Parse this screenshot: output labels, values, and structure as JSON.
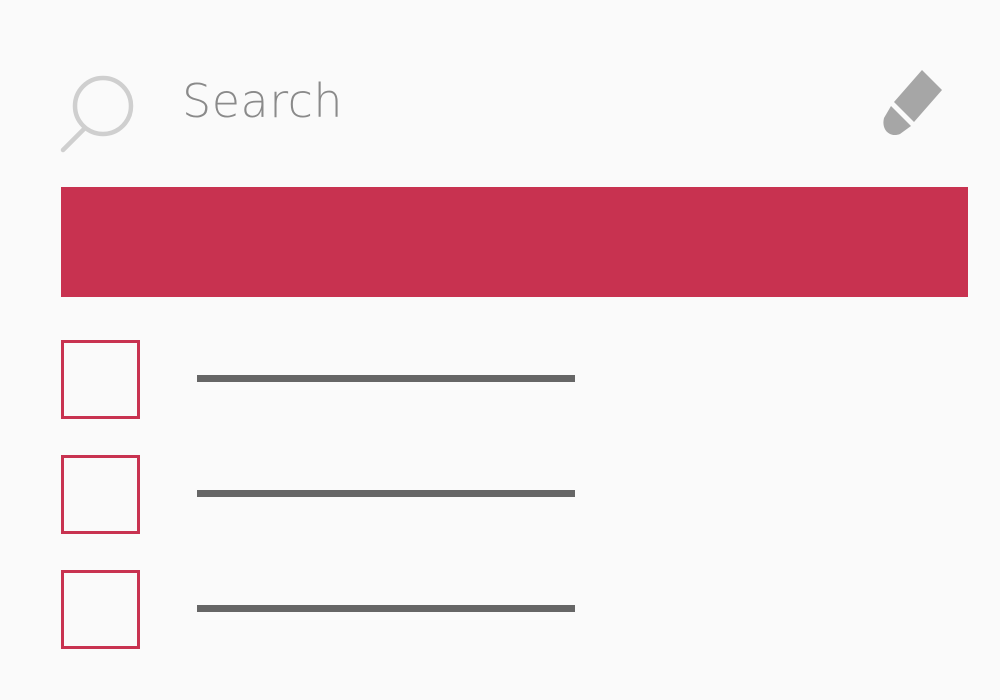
{
  "search": {
    "placeholder": "Search",
    "icon": "search-icon"
  },
  "toolbar": {
    "edit_icon": "pencil-icon"
  },
  "colors": {
    "accent": "#c83250",
    "background": "#fafafa",
    "text_muted": "#8a8a8a",
    "placeholder_line": "#666666",
    "icon_gray": "#a6a6a6",
    "search_icon": "#cfcfcf"
  },
  "tasks": [
    {
      "checked": false
    },
    {
      "checked": false
    },
    {
      "checked": false
    }
  ]
}
